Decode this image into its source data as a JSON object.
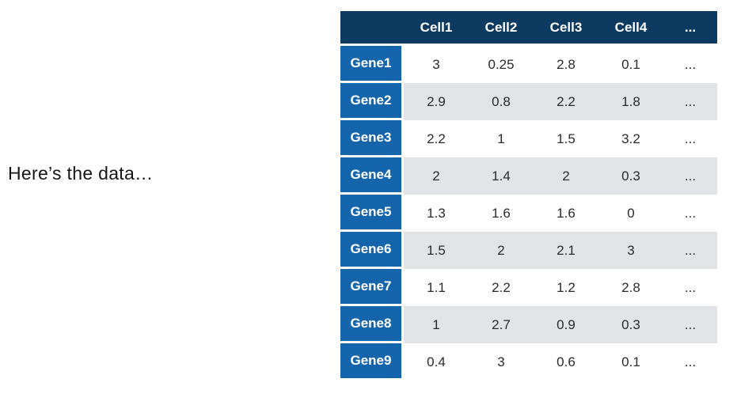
{
  "caption": {
    "text": "Here’s the data…"
  },
  "table": {
    "corner_label": "",
    "columns": [
      "Cell1",
      "Cell2",
      "Cell3",
      "Cell4",
      "..."
    ],
    "rows": [
      {
        "label": "Gene1",
        "values": [
          "3",
          "0.25",
          "2.8",
          "0.1",
          "..."
        ]
      },
      {
        "label": "Gene2",
        "values": [
          "2.9",
          "0.8",
          "2.2",
          "1.8",
          "..."
        ]
      },
      {
        "label": "Gene3",
        "values": [
          "2.2",
          "1",
          "1.5",
          "3.2",
          "..."
        ]
      },
      {
        "label": "Gene4",
        "values": [
          "2",
          "1.4",
          "2",
          "0.3",
          "..."
        ]
      },
      {
        "label": "Gene5",
        "values": [
          "1.3",
          "1.6",
          "1.6",
          "0",
          "..."
        ]
      },
      {
        "label": "Gene6",
        "values": [
          "1.5",
          "2",
          "2.1",
          "3",
          "..."
        ]
      },
      {
        "label": "Gene7",
        "values": [
          "1.1",
          "2.2",
          "1.2",
          "2.8",
          "..."
        ]
      },
      {
        "label": "Gene8",
        "values": [
          "1",
          "2.7",
          "0.9",
          "0.3",
          "..."
        ]
      },
      {
        "label": "Gene9",
        "values": [
          "0.4",
          "3",
          "0.6",
          "0.1",
          "..."
        ]
      }
    ]
  },
  "colors": {
    "page_bg": "#ffffff",
    "header_bg": "#0d3a61",
    "gene_bg": "#1565ad",
    "row_bg": "#ffffff",
    "row_alt_bg": "#e2e3e6",
    "header_text": "#ffffff",
    "cell_text": "#2a2a2a",
    "caption_text": "#141414"
  },
  "chart_data": {
    "type": "table",
    "title": "Here’s the data…",
    "columns": [
      "Cell1",
      "Cell2",
      "Cell3",
      "Cell4",
      "..."
    ],
    "row_labels": [
      "Gene1",
      "Gene2",
      "Gene3",
      "Gene4",
      "Gene5",
      "Gene6",
      "Gene7",
      "Gene8",
      "Gene9"
    ],
    "series": [
      {
        "name": "Gene1",
        "values": [
          3,
          0.25,
          2.8,
          0.1
        ]
      },
      {
        "name": "Gene2",
        "values": [
          2.9,
          0.8,
          2.2,
          1.8
        ]
      },
      {
        "name": "Gene3",
        "values": [
          2.2,
          1,
          1.5,
          3.2
        ]
      },
      {
        "name": "Gene4",
        "values": [
          2,
          1.4,
          2,
          0.3
        ]
      },
      {
        "name": "Gene5",
        "values": [
          1.3,
          1.6,
          1.6,
          0
        ]
      },
      {
        "name": "Gene6",
        "values": [
          1.5,
          2,
          2.1,
          3
        ]
      },
      {
        "name": "Gene7",
        "values": [
          1.1,
          2.2,
          1.2,
          2.8
        ]
      },
      {
        "name": "Gene8",
        "values": [
          1,
          2.7,
          0.9,
          0.3
        ]
      },
      {
        "name": "Gene9",
        "values": [
          0.4,
          3,
          0.6,
          0.1
        ]
      }
    ]
  }
}
